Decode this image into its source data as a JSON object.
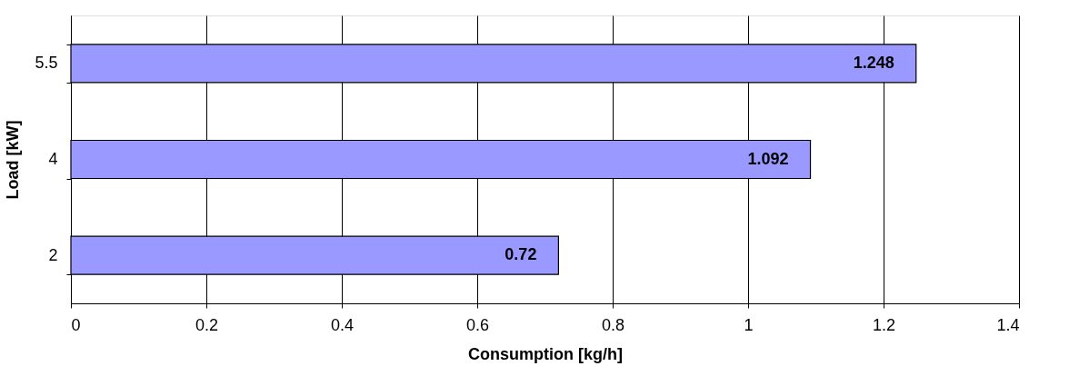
{
  "chart_data": {
    "type": "bar",
    "orientation": "horizontal",
    "xlabel": "Consumption [kg/h]",
    "ylabel": "Load [kW]",
    "categories": [
      "5.5",
      "4",
      "2"
    ],
    "values": [
      1.248,
      1.092,
      0.72
    ],
    "color": "#9999ff",
    "xlim": [
      0,
      1.4
    ],
    "xticks": [
      0,
      0.2,
      0.4,
      0.6,
      0.8,
      1,
      1.2,
      1.4
    ],
    "grid": "x",
    "data_labels": true
  }
}
